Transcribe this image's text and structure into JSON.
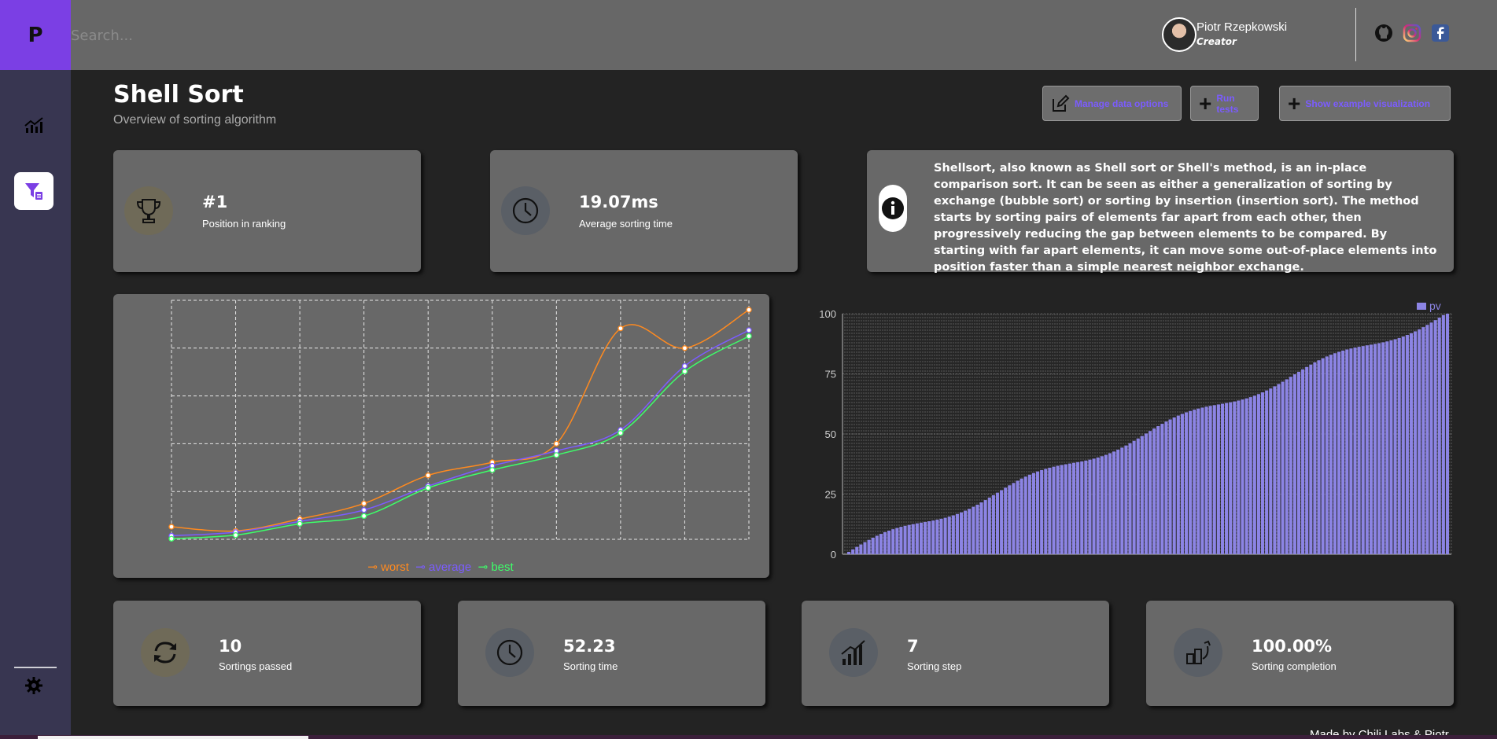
{
  "brand": {
    "logo_letter": "P"
  },
  "search": {
    "placeholder": "Search..."
  },
  "user": {
    "name": "Piotr Rzepkowski",
    "role": "Creator"
  },
  "social": [
    "github-icon",
    "instagram-icon",
    "facebook-icon"
  ],
  "page": {
    "title": "Shell Sort",
    "subtitle": "Overview of sorting algorithm"
  },
  "actions": {
    "manage": "Manage data options",
    "run": "Run tests",
    "show": "Show example visualization"
  },
  "stats_top": {
    "ranking": {
      "value": "#1",
      "label": "Position in ranking"
    },
    "avg_time": {
      "value": "19.07ms",
      "label": "Average sorting time"
    }
  },
  "description": "Shellsort, also known as Shell sort or Shell's method, is an in-place comparison sort. It can be seen as either a generalization of sorting by exchange (bubble sort) or sorting by insertion (insertion sort). The method starts by sorting pairs of elements far apart from each other, then progressively reducing the gap between elements to be compared. By starting with far apart elements, it can move some out-of-place elements into position faster than a simple nearest neighbor exchange.",
  "stats_bottom": {
    "passed": {
      "value": "10",
      "label": "Sortings passed"
    },
    "time": {
      "value": "52.23",
      "label": "Sorting time"
    },
    "step": {
      "value": "7",
      "label": "Sorting step"
    },
    "completion": {
      "value": "100.00%",
      "label": "Sorting completion"
    }
  },
  "footer": {
    "text": "Made by Chili Labs & Piotr"
  },
  "colors": {
    "accent": "#7b3fe4",
    "worst": "#ff8a1f",
    "average": "#7b5cff",
    "best": "#3dff6a",
    "bar": "#8c84e4"
  },
  "chart_data": [
    {
      "type": "line",
      "title": "",
      "legend_position": "bottom-center",
      "x": [
        1,
        2,
        3,
        4,
        5,
        6,
        7,
        8,
        9,
        10
      ],
      "series": [
        {
          "name": "worst",
          "values": [
            2.1,
            1.4,
            3.4,
            6.0,
            10.7,
            12.9,
            16.0,
            35.3,
            32.0,
            38.4
          ]
        },
        {
          "name": "average",
          "values": [
            0.6,
            1.2,
            3.0,
            4.9,
            8.9,
            12.3,
            14.8,
            18.3,
            29.0,
            35.0
          ]
        },
        {
          "name": "best",
          "values": [
            0.1,
            0.7,
            2.6,
            3.9,
            8.6,
            11.6,
            14.1,
            17.8,
            28.1,
            34.0
          ]
        }
      ],
      "ylim": [
        0,
        40
      ],
      "grid": true
    },
    {
      "type": "bar",
      "series": [
        {
          "name": "pv"
        }
      ],
      "legend_position": "top-right",
      "bar_count": 150,
      "yticks": [
        "0",
        "25",
        "50",
        "75",
        "100"
      ],
      "ylim": [
        0,
        100
      ],
      "values_rule": "sorted ascending, approximately linear from 1 to 100",
      "grid": true
    }
  ]
}
